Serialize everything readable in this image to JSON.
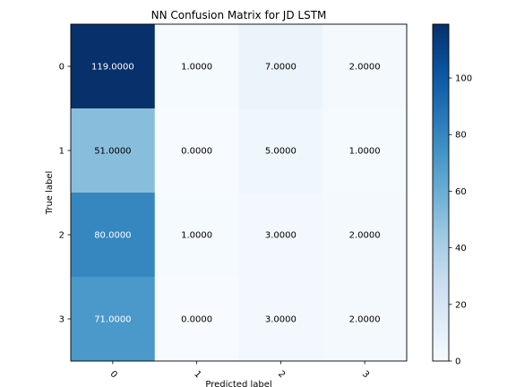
{
  "chart_data": {
    "type": "heatmap",
    "title": "NN Confusion Matrix for JD LSTM",
    "xlabel": "Predicted label",
    "ylabel": "True label",
    "x_categories": [
      "0",
      "1",
      "2",
      "3"
    ],
    "y_categories": [
      "0",
      "1",
      "2",
      "3"
    ],
    "values": [
      [
        119,
        1,
        7,
        2
      ],
      [
        51,
        0,
        5,
        1
      ],
      [
        80,
        1,
        3,
        2
      ],
      [
        71,
        0,
        3,
        2
      ]
    ],
    "cell_labels": [
      [
        "119.0000",
        "1.0000",
        "7.0000",
        "2.0000"
      ],
      [
        "51.0000",
        "0.0000",
        "5.0000",
        "1.0000"
      ],
      [
        "80.0000",
        "1.0000",
        "3.0000",
        "2.0000"
      ],
      [
        "71.0000",
        "0.0000",
        "3.0000",
        "2.0000"
      ]
    ],
    "colormap": "Blues",
    "color_range": [
      0,
      119
    ],
    "colorbar_ticks": [
      "0",
      "20",
      "40",
      "60",
      "80",
      "100"
    ],
    "colorbar_tick_values": [
      0,
      20,
      40,
      60,
      80,
      100
    ],
    "x_tick_rotation": "45",
    "text_color_light": "#ffffff",
    "text_color_dark": "#000000"
  }
}
